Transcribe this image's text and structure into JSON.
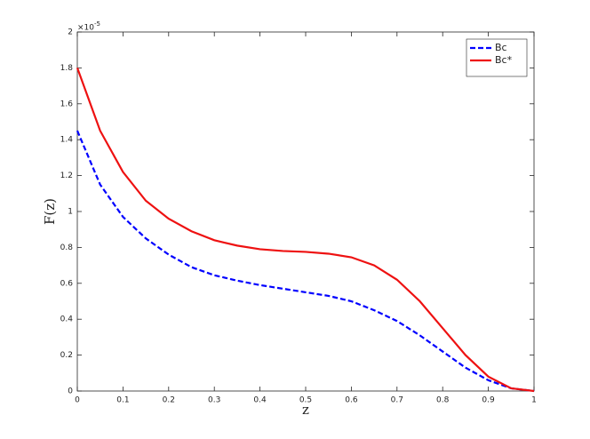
{
  "chart_data": {
    "type": "line",
    "xlabel": "z",
    "ylabel": "F(z)",
    "y_multiplier": "×10",
    "y_power": "-5",
    "x": [
      0,
      0.05,
      0.1,
      0.15,
      0.2,
      0.25,
      0.3,
      0.35,
      0.4,
      0.45,
      0.5,
      0.55,
      0.6,
      0.65,
      0.7,
      0.75,
      0.8,
      0.85,
      0.9,
      0.95,
      1
    ],
    "series": [
      {
        "name": "Bc",
        "color": "#0000ff",
        "style": "dashed",
        "values": [
          1.45,
          1.15,
          0.97,
          0.85,
          0.76,
          0.69,
          0.645,
          0.615,
          0.59,
          0.57,
          0.55,
          0.53,
          0.5,
          0.45,
          0.39,
          0.31,
          0.22,
          0.13,
          0.06,
          0.015,
          0
        ]
      },
      {
        "name": "Bc*",
        "color": "#ee1111",
        "style": "solid",
        "values": [
          1.8,
          1.45,
          1.22,
          1.06,
          0.96,
          0.89,
          0.84,
          0.81,
          0.79,
          0.78,
          0.775,
          0.765,
          0.745,
          0.7,
          0.62,
          0.5,
          0.35,
          0.2,
          0.08,
          0.015,
          0
        ]
      }
    ],
    "xlim": [
      0,
      1
    ],
    "xticks": [
      0,
      0.1,
      0.2,
      0.3,
      0.4,
      0.5,
      0.6,
      0.7,
      0.8,
      0.9,
      1
    ],
    "ylim": [
      0,
      2
    ],
    "yticks": [
      0,
      0.2,
      0.4,
      0.6,
      0.8,
      1,
      1.2,
      1.4,
      1.6,
      1.8,
      2
    ],
    "legend": "northeast",
    "grid": false
  }
}
